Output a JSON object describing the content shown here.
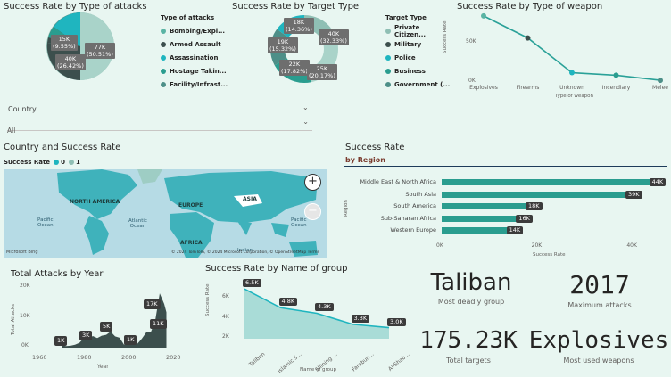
{
  "attacks_type": {
    "title": "Success Rate by Type of attacks",
    "legend_title": "Type of attacks",
    "legend": [
      {
        "label": "Bombing/Expl...",
        "color": "#5ab4a4"
      },
      {
        "label": "Armed Assault",
        "color": "#3c4f4d"
      },
      {
        "label": "Assassination",
        "color": "#1fb5bf"
      },
      {
        "label": "Hostage Takin...",
        "color": "#2a9d8f"
      },
      {
        "label": "Facility/Infrast...",
        "color": "#4d8f88"
      }
    ],
    "labels": {
      "a": "77K\n(50.51%)",
      "b": "40K\n(26.42%)",
      "c": "15K\n(9.55%)"
    }
  },
  "target_type": {
    "title": "Success Rate by Target Type",
    "legend_title": "Target Type",
    "legend": [
      {
        "label": "Private Citizen...",
        "color": "#8fbfb4"
      },
      {
        "label": "Military",
        "color": "#3c4f4d"
      },
      {
        "label": "Police",
        "color": "#1fb5bf"
      },
      {
        "label": "Business",
        "color": "#2a9d8f"
      },
      {
        "label": "Government (...",
        "color": "#4d8f88"
      }
    ],
    "labels": {
      "a": "18K\n(14.36%)",
      "b": "40K\n(32.33%)",
      "c": "19K\n(15.32%)",
      "d": "22K\n(17.82%)",
      "e": "25K\n(20.17%)"
    }
  },
  "weapon": {
    "title": "Success Rate by Type of weapon",
    "ylabel": "Success Rate",
    "xlabel": "Type of weapon",
    "yticks": [
      "50K",
      "0K"
    ]
  },
  "filter": {
    "label": "Country",
    "value": "All"
  },
  "map": {
    "title": "Country and Success Rate",
    "legend_title": "Success Rate",
    "legend": [
      {
        "label": "0",
        "color": "#1fb5bf"
      },
      {
        "label": "1",
        "color": "#8fbfb4"
      }
    ],
    "labels": {
      "na": "NORTH AMERICA",
      "eu": "EUROPE",
      "asia": "ASIA",
      "africa": "AFRICA",
      "pac1": "Pacific\nOcean",
      "atl": "Atlantic\nOcean",
      "pac2": "Pacific\nOcean",
      "ind": "Indian"
    },
    "attribution": "© 2024 TomTom, © 2024 Microsoft Corporation, © OpenStreetMap Terms",
    "bing": "Microsoft Bing",
    "zoom_in": "+",
    "zoom_out": "−"
  },
  "region": {
    "title": "Success Rate",
    "subtitle": "by Region",
    "ylabel": "Region",
    "xlabel": "Success Rate",
    "xticks": [
      "0K",
      "20K",
      "40K"
    ]
  },
  "years": {
    "title": "Total Attacks by Year",
    "ylabel": "Total Attacks",
    "xlabel": "Year",
    "yticks": [
      "20K",
      "10K",
      "0K"
    ],
    "xticks": [
      "1960",
      "1980",
      "2000",
      "2020"
    ],
    "labels": [
      "1K",
      "3K",
      "5K",
      "1K",
      "17K",
      "11K"
    ]
  },
  "groups": {
    "title": "Success Rate by Name of group",
    "ylabel": "Success Rate",
    "xlabel": "Name of group",
    "yticks": [
      "6K",
      "4K",
      "2K"
    ]
  },
  "kpis": {
    "deadly_group": {
      "value": "Taliban",
      "label": "Most deadly group"
    },
    "max_attacks": {
      "value": "2017",
      "label": "Maximum attacks"
    },
    "total_targets": {
      "value": "175.23K",
      "label": "Total targets"
    },
    "weapons": {
      "value": "Explosives",
      "label": "Most used weapons"
    }
  },
  "chart_data": [
    {
      "type": "line",
      "title": "Success Rate by Type of weapon",
      "xlabel": "Type of weapon",
      "ylabel": "Success Rate",
      "categories": [
        "Explosives",
        "Firearms",
        "Unknown",
        "Incendiary",
        "Melee"
      ],
      "values": [
        78000,
        52000,
        11000,
        8000,
        2000
      ],
      "ylim": [
        0,
        80000
      ],
      "colors": [
        "#5ab4a4",
        "#3c4f4d",
        "#1fb5bf",
        "#2a9d8f",
        "#4d8f88"
      ]
    },
    {
      "type": "bar",
      "title": "Success Rate",
      "subtitle": "by Region",
      "xlabel": "Success Rate",
      "ylabel": "Region",
      "categories": [
        "Middle East & North Africa",
        "South Asia",
        "South America",
        "Sub-Saharan Africa",
        "Western Europe"
      ],
      "values": [
        44000,
        39000,
        18000,
        16000,
        14000
      ],
      "value_labels": [
        "44K",
        "39K",
        "18K",
        "16K",
        "14K"
      ],
      "xlim": [
        0,
        45000
      ],
      "color": "#2a9d8f"
    },
    {
      "type": "area",
      "title": "Total Attacks by Year",
      "xlabel": "Year",
      "ylabel": "Total Attacks",
      "x": [
        1970,
        1972,
        1974,
        1976,
        1978,
        1980,
        1982,
        1984,
        1986,
        1988,
        1990,
        1992,
        1994,
        1996,
        1998,
        2000,
        2002,
        2004,
        2006,
        2008,
        2010,
        2012,
        2014,
        2016,
        2017
      ],
      "values": [
        700,
        500,
        600,
        900,
        1500,
        3000,
        2700,
        3600,
        3000,
        3700,
        4000,
        5000,
        3500,
        3100,
        900,
        1800,
        1300,
        1200,
        2800,
        4800,
        4800,
        8500,
        16900,
        13600,
        11000
      ],
      "ylim": [
        0,
        20000
      ],
      "xlim": [
        1960,
        2020
      ],
      "color": "#3c4f4d"
    },
    {
      "type": "area",
      "title": "Success Rate by Name of group",
      "xlabel": "Name of group",
      "ylabel": "Success Rate",
      "categories": [
        "Taliban",
        "Islamic S...",
        "Shining ...",
        "Farabun...",
        "Al-Shab..."
      ],
      "values": [
        6500,
        4800,
        4300,
        3300,
        3000
      ],
      "value_labels": [
        "6.5K",
        "4.8K",
        "4.3K",
        "3.3K",
        "3.0K"
      ],
      "ylim": [
        2000,
        7000
      ],
      "color": "#1fb5bf"
    }
  ]
}
